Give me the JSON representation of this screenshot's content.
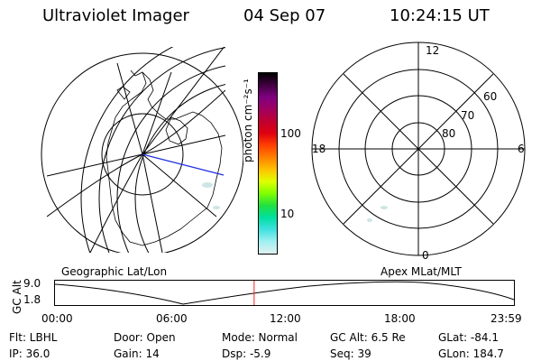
{
  "header": {
    "instrument": "Ultraviolet Imager",
    "date": "04 Sep 07",
    "time": "10:24:15 UT"
  },
  "colorbar": {
    "unit_label": "photon cm⁻²s⁻¹",
    "tick_labels": [
      "100",
      "10"
    ],
    "colors": [
      "#000000",
      "#400040",
      "#800080",
      "#a00060",
      "#c00030",
      "#e00010",
      "#ff4000",
      "#ff8000",
      "#ffc000",
      "#e0ff00",
      "#80ff00",
      "#20e040",
      "#00e0a0",
      "#40e0e0",
      "#a0f0f0",
      "#e0f0f0"
    ]
  },
  "left_map": {
    "caption": "Geographic Lat/Lon"
  },
  "right_map": {
    "caption": "Apex MLat/MLT",
    "mlt_labels": [
      "12",
      "6",
      "0",
      "18"
    ],
    "mlat_labels": [
      "60",
      "70",
      "80"
    ]
  },
  "timeline": {
    "ylabel": "GC Alt",
    "ytick_labels": [
      "9.0",
      "1.8"
    ],
    "xtick_labels": [
      "00:00",
      "06:00",
      "12:00",
      "18:00",
      "23:59"
    ],
    "current_time_fraction": 0.434
  },
  "info": {
    "filter": "Flt:  LBHL",
    "ip": "IP:  36.0",
    "door": "Door:  Open",
    "gain": "Gain:  14",
    "mode": "Mode:  Normal",
    "dsp": "Dsp:     -5.9",
    "gc_alt": "GC Alt:  6.5 Re",
    "seq": "Seq:  39",
    "glat": "GLat:  -84.1",
    "glon": "GLon:  184.7"
  }
}
